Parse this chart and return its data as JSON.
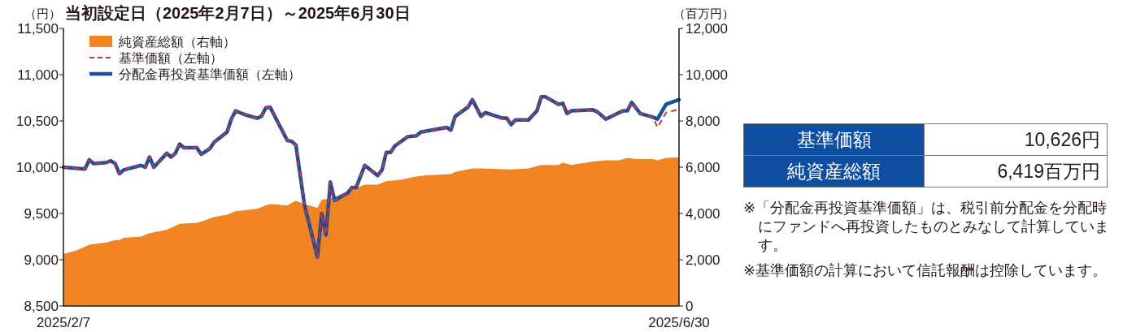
{
  "chart_data": [
    {
      "type": "line",
      "title": "当初設定日（2025年2月7日）～2025年6月30日",
      "ylabel": "（円）",
      "y2label": "（百万円）",
      "xlim": [
        "2025-02-07",
        "2025-06-30"
      ],
      "xticks": [
        {
          "value": "2025-02-07",
          "label": "2025/2/7"
        },
        {
          "value": "2025-06-30",
          "label": "2025/6/30"
        }
      ],
      "ylim": [
        8500,
        11500
      ],
      "yticks": [
        {
          "value": 8500,
          "label": "8,500"
        },
        {
          "value": 9000,
          "label": "9,000"
        },
        {
          "value": 9500,
          "label": "9,500"
        },
        {
          "value": 10000,
          "label": "10,000"
        },
        {
          "value": 10500,
          "label": "10,500"
        },
        {
          "value": 11000,
          "label": "11,000"
        },
        {
          "value": 11500,
          "label": "11,500"
        }
      ],
      "y2lim": [
        0,
        12000
      ],
      "y2ticks": [
        0,
        {
          "value": 2000,
          "label": "2,000"
        },
        {
          "value": 4000,
          "label": "4,000"
        },
        {
          "value": 6000,
          "label": "6,000"
        },
        {
          "value": 8000,
          "label": "8,000"
        },
        {
          "value": 10000,
          "label": "10,000"
        },
        {
          "value": 12000,
          "label": "12,000"
        }
      ],
      "legend": "top left",
      "grid": false,
      "series": [
        {
          "name": "純資産総額（右軸）",
          "type": "area",
          "axis": "y2",
          "color": "#f28522",
          "x": [
            "2025-02-07",
            "2025-02-10",
            "2025-02-13",
            "2025-02-17",
            "2025-02-19",
            "2025-02-20",
            "2025-02-21",
            "2025-02-25",
            "2025-02-27",
            "2025-03-03",
            "2025-03-06",
            "2025-03-10",
            "2025-03-11",
            "2025-03-14",
            "2025-03-17",
            "2025-03-19",
            "2025-03-24",
            "2025-03-26",
            "2025-03-27",
            "2025-03-31",
            "2025-04-02",
            "2025-04-04",
            "2025-04-07",
            "2025-04-08",
            "2025-04-10",
            "2025-04-14",
            "2025-04-18",
            "2025-04-21",
            "2025-04-23",
            "2025-04-26",
            "2025-04-30",
            "2025-05-02",
            "2025-05-08",
            "2025-05-09",
            "2025-05-13",
            "2025-05-15",
            "2025-05-22",
            "2025-05-26",
            "2025-05-29",
            "2025-06-02",
            "2025-06-03",
            "2025-06-05",
            "2025-06-10",
            "2025-06-13",
            "2025-06-16",
            "2025-06-18",
            "2025-06-20",
            "2025-06-24",
            "2025-06-25",
            "2025-06-27",
            "2025-06-30"
          ],
          "values": [
            2250,
            2400,
            2650,
            2750,
            2850,
            2850,
            2950,
            3000,
            3150,
            3300,
            3550,
            3600,
            3650,
            3850,
            3950,
            4100,
            4200,
            4350,
            4400,
            4350,
            4550,
            4400,
            4250,
            4600,
            4650,
            4950,
            5250,
            5250,
            5400,
            5450,
            5600,
            5650,
            5700,
            5800,
            5950,
            5950,
            5900,
            5950,
            6100,
            6100,
            6200,
            6100,
            6250,
            6300,
            6300,
            6400,
            6350,
            6350,
            6300,
            6400,
            6419
          ]
        },
        {
          "name": "分配金再投資基準価額（左軸）",
          "type": "line",
          "line_style": "solid",
          "color": "#1a4f9c",
          "x": [
            "2025-02-07",
            "2025-02-12",
            "2025-02-13",
            "2025-02-14",
            "2025-02-17",
            "2025-02-18",
            "2025-02-19",
            "2025-02-20",
            "2025-02-21",
            "2025-02-25",
            "2025-02-26",
            "2025-02-27",
            "2025-02-28",
            "2025-03-03",
            "2025-03-04",
            "2025-03-05",
            "2025-03-06",
            "2025-03-07",
            "2025-03-10",
            "2025-03-11",
            "2025-03-13",
            "2025-03-14",
            "2025-03-17",
            "2025-03-18",
            "2025-03-19",
            "2025-03-21",
            "2025-03-24",
            "2025-03-25",
            "2025-03-26",
            "2025-03-27",
            "2025-03-28",
            "2025-03-31",
            "2025-04-01",
            "2025-04-02",
            "2025-04-04",
            "2025-04-07",
            "2025-04-08",
            "2025-04-09",
            "2025-04-10",
            "2025-04-11",
            "2025-04-14",
            "2025-04-15",
            "2025-04-16",
            "2025-04-18",
            "2025-04-21",
            "2025-04-22",
            "2025-04-23",
            "2025-04-24",
            "2025-04-25",
            "2025-04-28",
            "2025-04-30",
            "2025-05-01",
            "2025-05-07",
            "2025-05-08",
            "2025-05-09",
            "2025-05-12",
            "2025-05-13",
            "2025-05-15",
            "2025-05-16",
            "2025-05-18",
            "2025-05-20",
            "2025-05-21",
            "2025-05-22",
            "2025-05-23",
            "2025-05-26",
            "2025-05-28",
            "2025-05-29",
            "2025-05-30",
            "2025-06-02",
            "2025-06-03",
            "2025-06-04",
            "2025-06-05",
            "2025-06-10",
            "2025-06-11",
            "2025-06-13",
            "2025-06-17",
            "2025-06-18",
            "2025-06-19",
            "2025-06-21",
            "2025-06-24",
            "2025-06-25",
            "2025-06-27",
            "2025-06-30"
          ],
          "values": [
            10000,
            9980,
            10080,
            10040,
            10050,
            10070,
            10040,
            9930,
            9970,
            10020,
            10000,
            10110,
            10000,
            10150,
            10110,
            10150,
            10250,
            10210,
            10210,
            10140,
            10200,
            10270,
            10380,
            10520,
            10610,
            10570,
            10530,
            10550,
            10640,
            10650,
            10560,
            10290,
            10280,
            10240,
            9590,
            9030,
            9500,
            9270,
            9840,
            9640,
            9720,
            9780,
            9780,
            10020,
            9910,
            9970,
            10160,
            10160,
            10230,
            10330,
            10340,
            10380,
            10430,
            10400,
            10550,
            10650,
            10730,
            10550,
            10590,
            10560,
            10530,
            10530,
            10460,
            10510,
            10510,
            10610,
            10760,
            10760,
            10680,
            10690,
            10580,
            10610,
            10620,
            10600,
            10520,
            10610,
            10610,
            10700,
            10580,
            10540,
            10520,
            10680,
            10730
          ]
        },
        {
          "name": "基準価額（左軸）",
          "type": "line",
          "line_style": "dashed",
          "color": "#d0323a",
          "x": [
            "2025-02-07",
            "2025-02-12",
            "2025-02-13",
            "2025-02-14",
            "2025-02-17",
            "2025-02-18",
            "2025-02-19",
            "2025-02-20",
            "2025-02-21",
            "2025-02-25",
            "2025-02-26",
            "2025-02-27",
            "2025-02-28",
            "2025-03-03",
            "2025-03-04",
            "2025-03-05",
            "2025-03-06",
            "2025-03-07",
            "2025-03-10",
            "2025-03-11",
            "2025-03-13",
            "2025-03-14",
            "2025-03-17",
            "2025-03-18",
            "2025-03-19",
            "2025-03-21",
            "2025-03-24",
            "2025-03-25",
            "2025-03-26",
            "2025-03-27",
            "2025-03-28",
            "2025-03-31",
            "2025-04-01",
            "2025-04-02",
            "2025-04-04",
            "2025-04-07",
            "2025-04-08",
            "2025-04-09",
            "2025-04-10",
            "2025-04-11",
            "2025-04-14",
            "2025-04-15",
            "2025-04-16",
            "2025-04-18",
            "2025-04-21",
            "2025-04-22",
            "2025-04-23",
            "2025-04-24",
            "2025-04-25",
            "2025-04-28",
            "2025-04-30",
            "2025-05-01",
            "2025-05-07",
            "2025-05-08",
            "2025-05-09",
            "2025-05-12",
            "2025-05-13",
            "2025-05-15",
            "2025-05-16",
            "2025-05-18",
            "2025-05-20",
            "2025-05-21",
            "2025-05-22",
            "2025-05-23",
            "2025-05-26",
            "2025-05-28",
            "2025-05-29",
            "2025-05-30",
            "2025-06-02",
            "2025-06-03",
            "2025-06-04",
            "2025-06-05",
            "2025-06-10",
            "2025-06-11",
            "2025-06-13",
            "2025-06-17",
            "2025-06-18",
            "2025-06-19",
            "2025-06-21",
            "2025-06-24",
            "2025-06-25",
            "2025-06-27",
            "2025-06-30"
          ],
          "values": [
            10000,
            9980,
            10080,
            10040,
            10050,
            10070,
            10040,
            9930,
            9970,
            10020,
            10000,
            10110,
            10000,
            10150,
            10110,
            10150,
            10250,
            10210,
            10210,
            10140,
            10200,
            10270,
            10380,
            10520,
            10610,
            10570,
            10530,
            10550,
            10640,
            10650,
            10560,
            10290,
            10280,
            10240,
            9590,
            9030,
            9500,
            9270,
            9840,
            9640,
            9720,
            9780,
            9780,
            10020,
            9910,
            9970,
            10160,
            10160,
            10230,
            10330,
            10340,
            10380,
            10430,
            10400,
            10550,
            10650,
            10730,
            10550,
            10590,
            10560,
            10530,
            10530,
            10460,
            10510,
            10510,
            10610,
            10760,
            10760,
            10680,
            10690,
            10580,
            10610,
            10620,
            10600,
            10520,
            10610,
            10610,
            10700,
            10580,
            10540,
            10430,
            10590,
            10626
          ]
        }
      ]
    },
    {
      "type": "other",
      "annotations": [
        "基準価額",
        "10,626円",
        "純資産総額",
        "6,419百万円",
        "※「分配金再投資基準価額」は、税引前分配金を分配時にファンドへ再投資したものとみなして計算しています。",
        "※基準価額の計算において信託報酬は控除しています。"
      ]
    }
  ]
}
